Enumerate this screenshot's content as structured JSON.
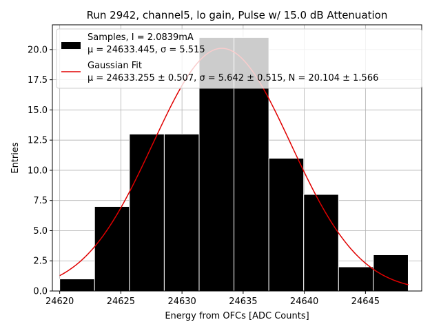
{
  "chart_data": {
    "type": "bar",
    "title": "Run 2942, channel5, lo gain, Pulse w/ 15.0 dB Attenuation",
    "xlabel": "Energy from OFCs [ADC Counts]",
    "ylabel": "Entries",
    "xlim": [
      24619.4,
      24649.6
    ],
    "ylim": [
      0,
      22.05
    ],
    "xticks": [
      24620,
      24625,
      24630,
      24635,
      24640,
      24645
    ],
    "yticks": [
      0.0,
      2.5,
      5.0,
      7.5,
      10.0,
      12.5,
      15.0,
      17.5,
      20.0
    ],
    "xtick_labels": [
      "24620",
      "24625",
      "24630",
      "24635",
      "24640",
      "24645"
    ],
    "ytick_labels": [
      "0.0",
      "2.5",
      "5.0",
      "7.5",
      "10.0",
      "12.5",
      "15.0",
      "17.5",
      "20.0"
    ],
    "grid": true,
    "legend_position": "top-left",
    "histogram": {
      "bin_edges": [
        24620.0,
        24622.85,
        24625.7,
        24628.55,
        24631.4,
        24634.25,
        24637.1,
        24639.95,
        24642.8,
        24645.65,
        24648.5
      ],
      "counts": [
        1,
        7,
        13,
        13,
        21,
        21,
        11,
        8,
        2,
        3
      ],
      "color": "#000000",
      "edgecolor": "#ffffff"
    },
    "gaussian_fit": {
      "mu": 24633.255,
      "sigma": 5.642,
      "N": 20.104,
      "color": "#e00000"
    },
    "series": [
      {
        "name_line1": "Samples, I = 2.0839mA",
        "name_line2": "μ = 24633.445, σ = 5.515"
      },
      {
        "name_line1": "Gaussian Fit",
        "name_line2": "μ = 24633.255 ± 0.507, σ = 5.642 ± 0.515, N = 20.104 ± 1.566"
      }
    ]
  }
}
